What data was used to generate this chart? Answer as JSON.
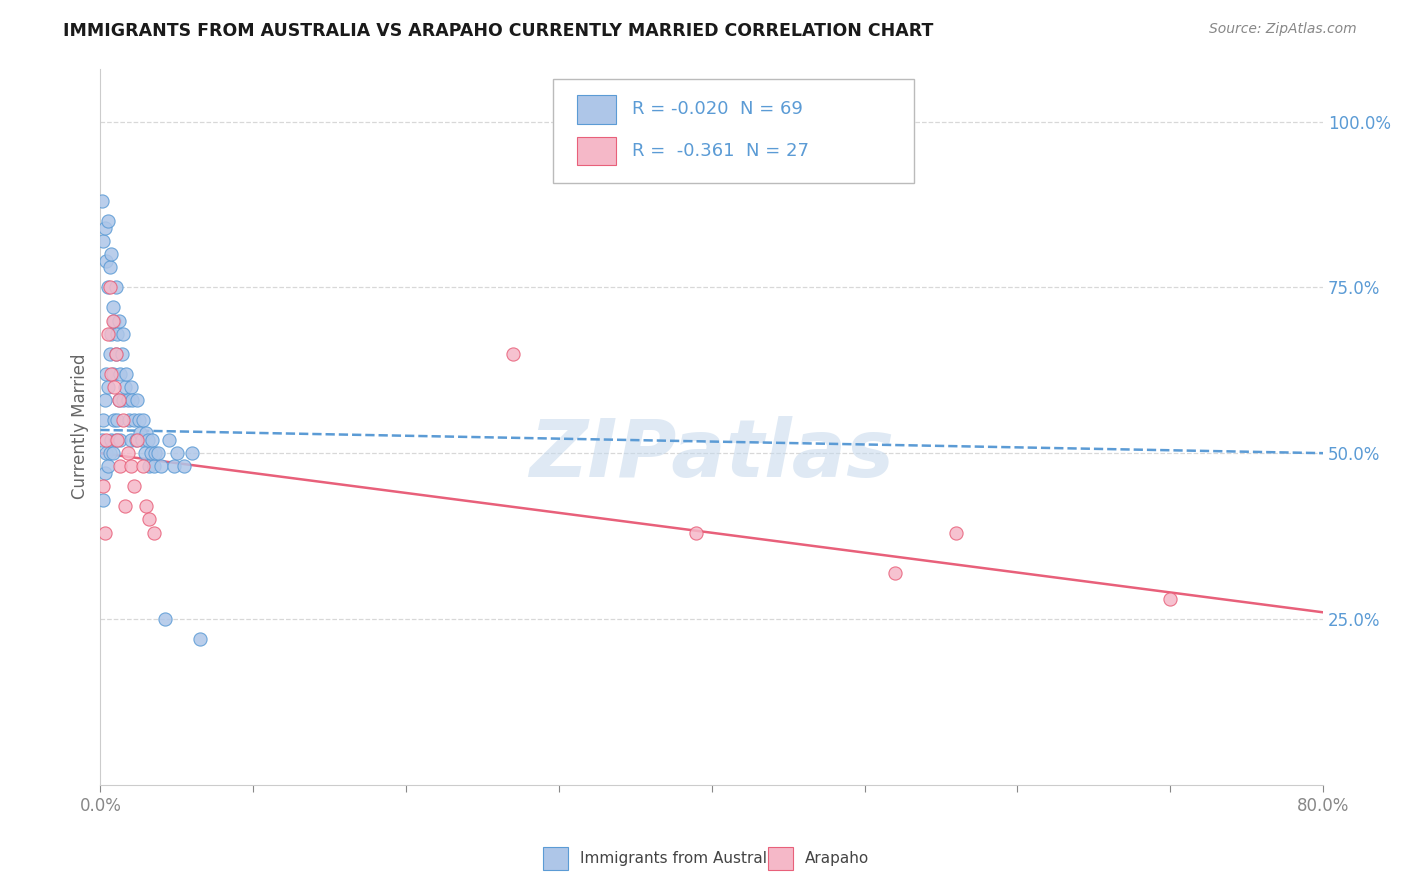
{
  "title": "IMMIGRANTS FROM AUSTRALIA VS ARAPAHO CURRENTLY MARRIED CORRELATION CHART",
  "source_text": "Source: ZipAtlas.com",
  "ylabel": "Currently Married",
  "watermark": "ZIPatlas",
  "legend_label1": "Immigrants from Australia",
  "legend_label2": "Arapaho",
  "r1": -0.02,
  "n1": 69,
  "r2": -0.361,
  "n2": 27,
  "color1": "#aec6e8",
  "color2": "#f5b8c8",
  "line_color1": "#5b9bd5",
  "line_color2": "#e8607a",
  "xlim": [
    0.0,
    0.8
  ],
  "ylim": [
    0.0,
    1.08
  ],
  "right_yticks": [
    1.0,
    0.75,
    0.5,
    0.25
  ],
  "right_yticklabels": [
    "100.0%",
    "75.0%",
    "50.0%",
    "25.0%"
  ],
  "australia_x": [
    0.001,
    0.001,
    0.002,
    0.002,
    0.002,
    0.003,
    0.003,
    0.003,
    0.004,
    0.004,
    0.004,
    0.005,
    0.005,
    0.005,
    0.005,
    0.006,
    0.006,
    0.006,
    0.007,
    0.007,
    0.007,
    0.008,
    0.008,
    0.008,
    0.009,
    0.009,
    0.01,
    0.01,
    0.01,
    0.011,
    0.011,
    0.012,
    0.012,
    0.013,
    0.013,
    0.014,
    0.015,
    0.015,
    0.016,
    0.017,
    0.018,
    0.019,
    0.02,
    0.02,
    0.021,
    0.022,
    0.023,
    0.024,
    0.025,
    0.026,
    0.027,
    0.028,
    0.029,
    0.03,
    0.031,
    0.032,
    0.033,
    0.034,
    0.035,
    0.036,
    0.038,
    0.04,
    0.042,
    0.045,
    0.048,
    0.05,
    0.055,
    0.06,
    0.065
  ],
  "australia_y": [
    0.88,
    0.52,
    0.82,
    0.55,
    0.43,
    0.84,
    0.58,
    0.47,
    0.79,
    0.62,
    0.5,
    0.85,
    0.75,
    0.6,
    0.48,
    0.78,
    0.65,
    0.5,
    0.8,
    0.68,
    0.52,
    0.72,
    0.62,
    0.5,
    0.7,
    0.55,
    0.75,
    0.65,
    0.52,
    0.68,
    0.55,
    0.7,
    0.58,
    0.62,
    0.52,
    0.65,
    0.68,
    0.58,
    0.6,
    0.62,
    0.58,
    0.55,
    0.6,
    0.52,
    0.58,
    0.55,
    0.52,
    0.58,
    0.55,
    0.53,
    0.52,
    0.55,
    0.5,
    0.53,
    0.52,
    0.48,
    0.5,
    0.52,
    0.48,
    0.5,
    0.5,
    0.48,
    0.25,
    0.52,
    0.48,
    0.5,
    0.48,
    0.5,
    0.22
  ],
  "arapaho_x": [
    0.002,
    0.003,
    0.004,
    0.005,
    0.006,
    0.007,
    0.008,
    0.009,
    0.01,
    0.011,
    0.012,
    0.013,
    0.015,
    0.016,
    0.018,
    0.02,
    0.022,
    0.024,
    0.028,
    0.03,
    0.032,
    0.035,
    0.27,
    0.39,
    0.52,
    0.56,
    0.7
  ],
  "arapaho_y": [
    0.45,
    0.38,
    0.52,
    0.68,
    0.75,
    0.62,
    0.7,
    0.6,
    0.65,
    0.52,
    0.58,
    0.48,
    0.55,
    0.42,
    0.5,
    0.48,
    0.45,
    0.52,
    0.48,
    0.42,
    0.4,
    0.38,
    0.65,
    0.38,
    0.32,
    0.38,
    0.28
  ],
  "background_color": "#ffffff",
  "grid_color": "#d8d8d8",
  "title_color": "#1a1a1a",
  "axis_label_color": "#666666",
  "right_label_color": "#5b9bd5",
  "source_color": "#888888"
}
